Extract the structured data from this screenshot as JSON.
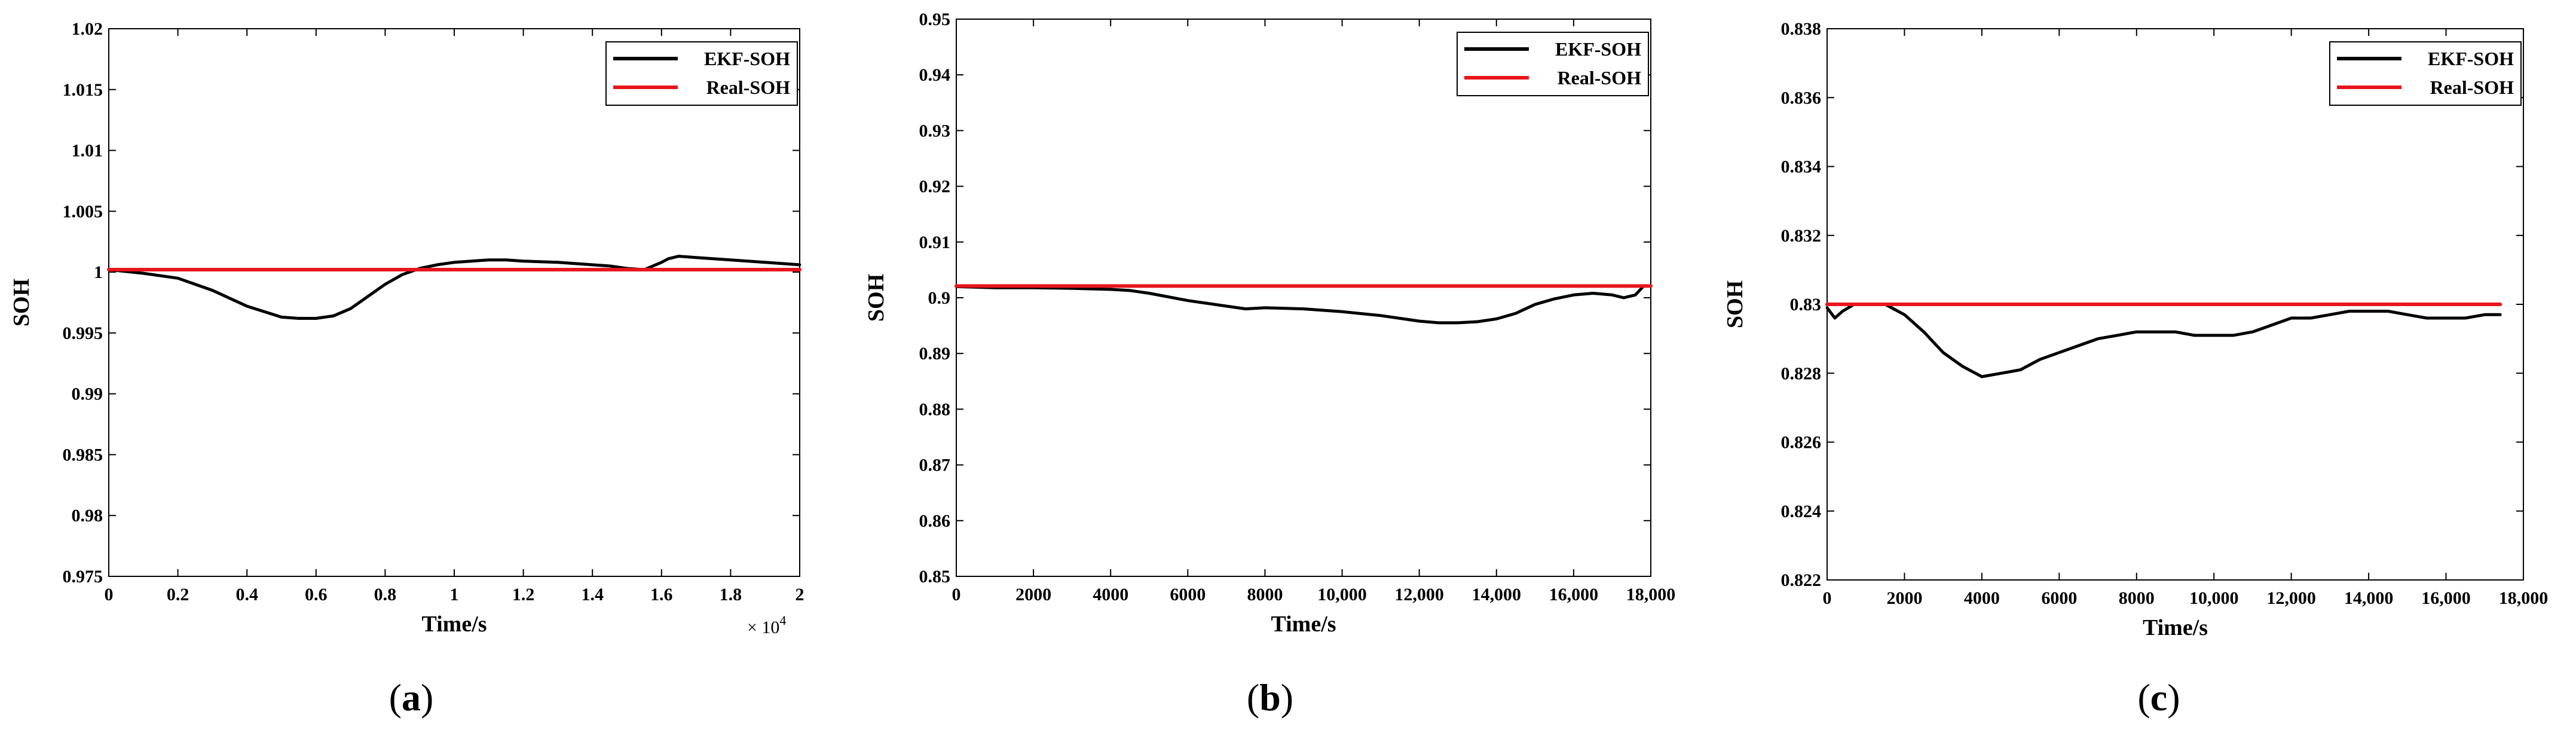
{
  "chart_data": [
    {
      "type": "line",
      "panel": "(a)",
      "caption_open": "(",
      "caption_letter": "a",
      "caption_close": ")",
      "xlabel": "Time/s",
      "ylabel": "SOH",
      "xlim": [
        0,
        2
      ],
      "ylim": [
        0.975,
        1.02
      ],
      "xticks": [
        0,
        0.2,
        0.4,
        0.6,
        0.8,
        1,
        1.2,
        1.4,
        1.6,
        1.8,
        2
      ],
      "xtick_labels": [
        "0",
        "0.2",
        "0.4",
        "0.6",
        "0.8",
        "1",
        "1.2",
        "1.4",
        "1.6",
        "1.8",
        "2"
      ],
      "yticks": [
        0.975,
        0.98,
        0.985,
        0.99,
        0.995,
        1,
        1.005,
        1.01,
        1.015,
        1.02
      ],
      "ytick_labels": [
        "0.975",
        "0.98",
        "0.985",
        "0.99",
        "0.995",
        "1",
        "1.005",
        "1.01",
        "1.015",
        "1.02"
      ],
      "x_multiplier": {
        "base": "× 10",
        "exponent": "4"
      },
      "legend_position": "top-right",
      "series": [
        {
          "name": "EKF-SOH",
          "color": "#000000",
          "x": [
            0,
            0.1,
            0.2,
            0.3,
            0.4,
            0.5,
            0.55,
            0.6,
            0.65,
            0.7,
            0.75,
            0.8,
            0.85,
            0.9,
            0.95,
            1.0,
            1.05,
            1.1,
            1.15,
            1.2,
            1.3,
            1.4,
            1.45,
            1.5,
            1.55,
            1.6,
            1.62,
            1.65,
            1.7,
            1.8,
            1.9,
            2.0
          ],
          "y": [
            1.0002,
            0.9999,
            0.9995,
            0.9985,
            0.9972,
            0.9963,
            0.9962,
            0.9962,
            0.9964,
            0.997,
            0.998,
            0.999,
            0.9998,
            1.0003,
            1.0006,
            1.0008,
            1.0009,
            1.001,
            1.001,
            1.0009,
            1.0008,
            1.0006,
            1.0005,
            1.0003,
            1.0002,
            1.0008,
            1.0011,
            1.0013,
            1.0012,
            1.001,
            1.0008,
            1.0006
          ]
        },
        {
          "name": "Real-SOH",
          "color": "#e8151c",
          "x": [
            0,
            2
          ],
          "y": [
            1.0002,
            1.0002
          ]
        }
      ]
    },
    {
      "type": "line",
      "panel": "(b)",
      "caption_open": "(",
      "caption_letter": "b",
      "caption_close": ")",
      "xlabel": "Time/s",
      "ylabel": "SOH",
      "xlim": [
        0,
        18000
      ],
      "ylim": [
        0.85,
        0.95
      ],
      "xticks": [
        0,
        2000,
        4000,
        6000,
        8000,
        10000,
        12000,
        14000,
        16000,
        18000
      ],
      "xtick_labels": [
        "0",
        "2000",
        "4000",
        "6000",
        "8000",
        "10,000",
        "12,000",
        "14,000",
        "16,000",
        "18,000"
      ],
      "yticks": [
        0.85,
        0.86,
        0.87,
        0.88,
        0.89,
        0.9,
        0.91,
        0.92,
        0.93,
        0.94,
        0.95
      ],
      "ytick_labels": [
        "0.85",
        "0.86",
        "0.87",
        "0.88",
        "0.89",
        "0.9",
        "0.91",
        "0.92",
        "0.93",
        "0.94",
        "0.95"
      ],
      "legend_position": "top-right",
      "series": [
        {
          "name": "EKF-SOH",
          "color": "#000000",
          "x": [
            0,
            1000,
            2000,
            3000,
            4000,
            4500,
            5000,
            6000,
            7000,
            7500,
            8000,
            9000,
            10000,
            11000,
            12000,
            12500,
            13000,
            13500,
            14000,
            14500,
            15000,
            15500,
            16000,
            16500,
            17000,
            17300,
            17600,
            17800
          ],
          "y": [
            0.902,
            0.9018,
            0.9018,
            0.9017,
            0.9015,
            0.9013,
            0.9008,
            0.8995,
            0.8985,
            0.898,
            0.8982,
            0.898,
            0.8975,
            0.8968,
            0.8958,
            0.8955,
            0.8955,
            0.8957,
            0.8962,
            0.8972,
            0.8988,
            0.8998,
            0.9005,
            0.9008,
            0.9005,
            0.9,
            0.9005,
            0.902
          ]
        },
        {
          "name": "Real-SOH",
          "color": "#e8151c",
          "x": [
            0,
            18000
          ],
          "y": [
            0.9021,
            0.9021
          ]
        }
      ]
    },
    {
      "type": "line",
      "panel": "(c)",
      "caption_open": "(",
      "caption_letter": "c",
      "caption_close": ")",
      "xlabel": "Time/s",
      "ylabel": "SOH",
      "xlim": [
        0,
        18000
      ],
      "ylim": [
        0.822,
        0.838
      ],
      "xticks": [
        0,
        2000,
        4000,
        6000,
        8000,
        10000,
        12000,
        14000,
        16000,
        18000
      ],
      "xtick_labels": [
        "0",
        "2000",
        "4000",
        "6000",
        "8000",
        "10,000",
        "12,000",
        "14,000",
        "16,000",
        "18,000"
      ],
      "yticks": [
        0.822,
        0.824,
        0.826,
        0.828,
        0.83,
        0.832,
        0.834,
        0.836,
        0.838
      ],
      "ytick_labels": [
        "0.822",
        "0.824",
        "0.826",
        "0.828",
        "0.83",
        "0.832",
        "0.834",
        "0.836",
        "0.838"
      ],
      "legend_position": "top-right",
      "series": [
        {
          "name": "EKF-SOH",
          "color": "#000000",
          "x": [
            0,
            200,
            400,
            700,
            1000,
            1500,
            2000,
            2500,
            3000,
            3500,
            4000,
            4500,
            5000,
            5500,
            6000,
            6500,
            7000,
            7500,
            8000,
            8500,
            9000,
            9500,
            10000,
            10500,
            11000,
            11500,
            12000,
            12500,
            13000,
            13500,
            14000,
            14500,
            15000,
            15500,
            16000,
            16500,
            17000,
            17400
          ],
          "y": [
            0.8299,
            0.8296,
            0.8298,
            0.83,
            0.83,
            0.83,
            0.8297,
            0.8292,
            0.8286,
            0.8282,
            0.8279,
            0.828,
            0.8281,
            0.8284,
            0.8286,
            0.8288,
            0.829,
            0.8291,
            0.8292,
            0.8292,
            0.8292,
            0.8291,
            0.8291,
            0.8291,
            0.8292,
            0.8294,
            0.8296,
            0.8296,
            0.8297,
            0.8298,
            0.8298,
            0.8298,
            0.8297,
            0.8296,
            0.8296,
            0.8296,
            0.8297,
            0.8297
          ]
        },
        {
          "name": "Real-SOH",
          "color": "#e8151c",
          "x": [
            0,
            17400
          ],
          "y": [
            0.83,
            0.83
          ]
        }
      ]
    }
  ]
}
